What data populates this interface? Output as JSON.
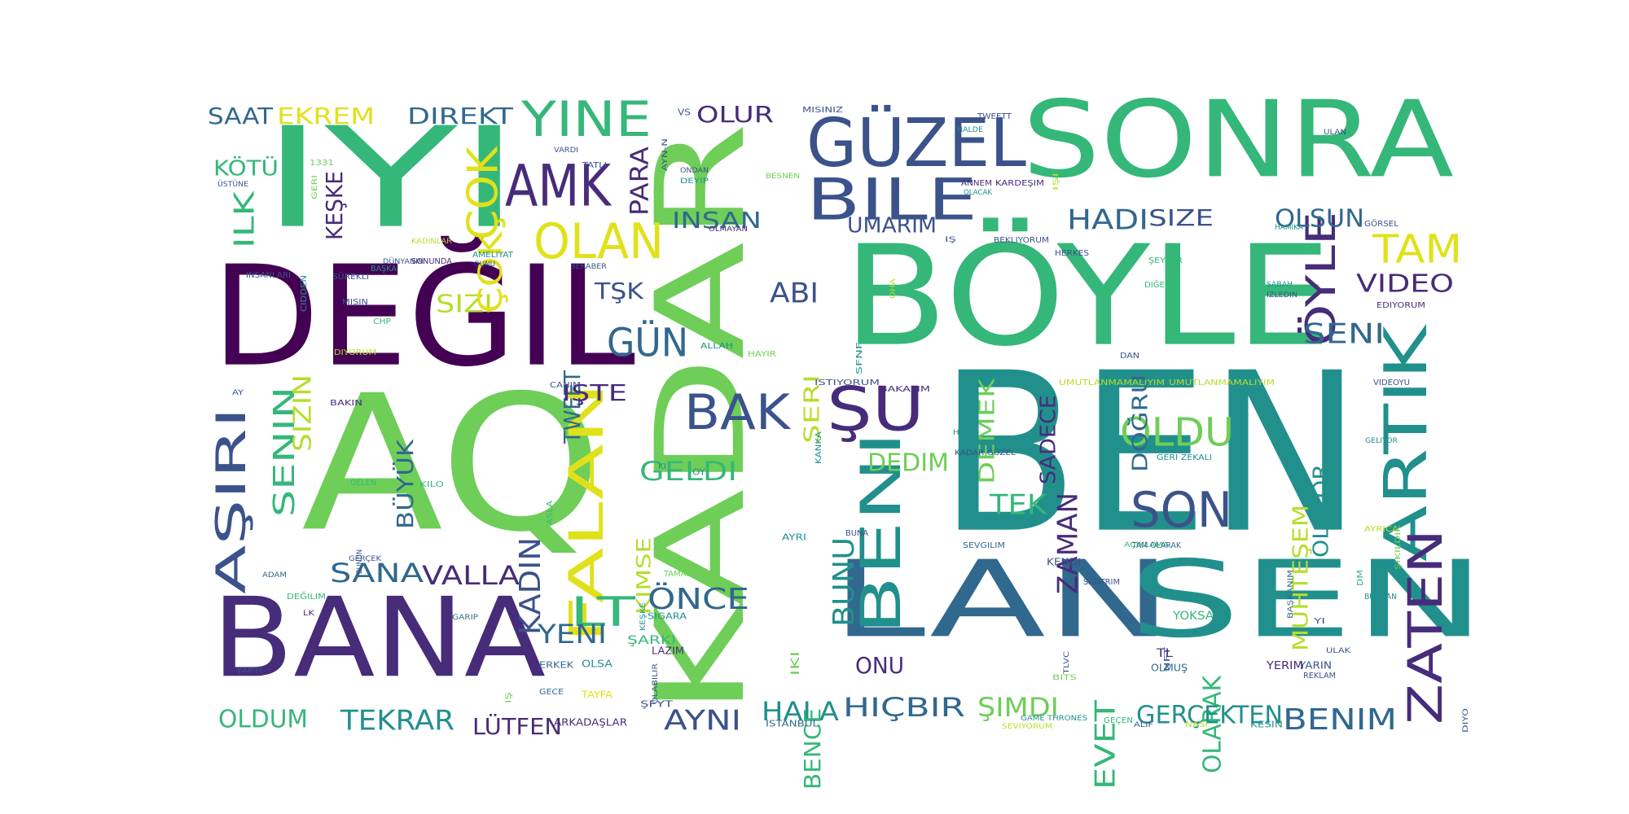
{
  "palette": {
    "dark_purple": "#440154",
    "indigo": "#472c7a",
    "blue": "#3b528b",
    "slate": "#31688e",
    "teal": "#21908d",
    "green": "#35b779",
    "lime": "#6ece58",
    "yellowgreen": "#b5de2b",
    "yellow": "#e0e11a"
  },
  "words": [
    {
      "text": "BEN",
      "color": "teal"
    },
    {
      "text": "BÖYLE",
      "color": "green"
    },
    {
      "text": "SONRA",
      "color": "green"
    },
    {
      "text": "AQ",
      "color": "lime"
    },
    {
      "text": "DEĞIL",
      "color": "dark_purple"
    },
    {
      "text": "IYI",
      "color": "green"
    },
    {
      "text": "KADAR",
      "color": "lime"
    },
    {
      "text": "BANA",
      "color": "indigo"
    },
    {
      "text": "LAN",
      "color": "slate"
    },
    {
      "text": "SEN",
      "color": "teal"
    },
    {
      "text": "ARTIK",
      "color": "teal"
    },
    {
      "text": "ZATEN",
      "color": "indigo"
    },
    {
      "text": "FALAN",
      "color": "yellow"
    },
    {
      "text": "GÜZEL",
      "color": "blue"
    },
    {
      "text": "BILE",
      "color": "blue"
    },
    {
      "text": "AMK",
      "color": "indigo"
    },
    {
      "text": "ÇOK",
      "color": "yellow"
    },
    {
      "text": "YINE",
      "color": "green"
    },
    {
      "text": "OLAN",
      "color": "yellow"
    },
    {
      "text": "AŞIRI",
      "color": "blue"
    },
    {
      "text": "ŞU",
      "color": "indigo"
    },
    {
      "text": "BENI",
      "color": "teal"
    },
    {
      "text": "BAK",
      "color": "blue"
    },
    {
      "text": "ÖYLE",
      "color": "indigo"
    },
    {
      "text": "SON",
      "color": "blue"
    },
    {
      "text": "OLDU",
      "color": "lime"
    },
    {
      "text": "TAM",
      "color": "yellow"
    },
    {
      "text": "LT",
      "color": "green"
    },
    {
      "text": "GÜN",
      "color": "slate"
    },
    {
      "text": "EKREM",
      "color": "yellow"
    },
    {
      "text": "SAAT",
      "color": "slate"
    },
    {
      "text": "DIREKT",
      "color": "slate"
    },
    {
      "text": "OLUR",
      "color": "indigo"
    },
    {
      "text": "PARA",
      "color": "indigo"
    },
    {
      "text": "KÖTÜ",
      "color": "green"
    },
    {
      "text": "KEŞKE",
      "color": "indigo"
    },
    {
      "text": "ILK",
      "color": "green"
    },
    {
      "text": "INSAN",
      "color": "slate"
    },
    {
      "text": "UMARIM",
      "color": "blue"
    },
    {
      "text": "HADI",
      "color": "slate"
    },
    {
      "text": "SIZE",
      "color": "blue"
    },
    {
      "text": "OLSUN",
      "color": "slate"
    },
    {
      "text": "SENIN",
      "color": "green"
    },
    {
      "text": "SIZIN",
      "color": "yellowgreen"
    },
    {
      "text": "BÜYÜK",
      "color": "slate"
    },
    {
      "text": "SIZI",
      "color": "yellowgreen"
    },
    {
      "text": "TŞK",
      "color": "blue"
    },
    {
      "text": "TWEET",
      "color": "slate"
    },
    {
      "text": "ABI",
      "color": "blue"
    },
    {
      "text": "SERI",
      "color": "yellowgreen"
    },
    {
      "text": "IŞTE",
      "color": "indigo"
    },
    {
      "text": "KADIN",
      "color": "blue"
    },
    {
      "text": "GELDI",
      "color": "green"
    },
    {
      "text": "KIMSE",
      "color": "yellowgreen"
    },
    {
      "text": "ÖNCE",
      "color": "slate"
    },
    {
      "text": "SANA",
      "color": "slate"
    },
    {
      "text": "VALLA",
      "color": "indigo"
    },
    {
      "text": "YENI",
      "color": "slate"
    },
    {
      "text": "DEMEK",
      "color": "lime"
    },
    {
      "text": "SADECE",
      "color": "indigo"
    },
    {
      "text": "DOĞRU",
      "color": "slate"
    },
    {
      "text": "SENI",
      "color": "slate"
    },
    {
      "text": "VIDEO",
      "color": "indigo"
    },
    {
      "text": "MUHTEŞEM",
      "color": "yellowgreen"
    },
    {
      "text": "OLUYOR",
      "color": "teal"
    },
    {
      "text": "ZAMAN",
      "color": "indigo"
    },
    {
      "text": "DEDIM",
      "color": "lime"
    },
    {
      "text": "TEK",
      "color": "green"
    },
    {
      "text": "BUNU",
      "color": "teal"
    },
    {
      "text": "EVET",
      "color": "green"
    },
    {
      "text": "OLARAK",
      "color": "green"
    },
    {
      "text": "GERÇEKTEN",
      "color": "teal"
    },
    {
      "text": "BENIM",
      "color": "slate"
    },
    {
      "text": "ŞIMDI",
      "color": "lime"
    },
    {
      "text": "HIÇBIR",
      "color": "slate"
    },
    {
      "text": "HALA",
      "color": "teal"
    },
    {
      "text": "BENCE",
      "color": "green"
    },
    {
      "text": "ONU",
      "color": "indigo"
    },
    {
      "text": "AYNI",
      "color": "blue"
    },
    {
      "text": "LÜTFEN",
      "color": "indigo"
    },
    {
      "text": "TEKRAR",
      "color": "teal"
    },
    {
      "text": "OLDUM",
      "color": "green"
    },
    {
      "text": "ÇOK",
      "color": "yellow"
    },
    {
      "text": "ALLAH",
      "color": "teal"
    },
    {
      "text": "OY",
      "color": "teal"
    },
    {
      "text": "KI",
      "color": "teal"
    },
    {
      "text": "AYRI",
      "color": "teal"
    },
    {
      "text": "BUNA",
      "color": "blue"
    },
    {
      "text": "TAMAM",
      "color": "lime"
    },
    {
      "text": "ŞARKI",
      "color": "green"
    },
    {
      "text": "LAZIM",
      "color": "indigo"
    },
    {
      "text": "OLSA",
      "color": "teal"
    },
    {
      "text": "TAYFA",
      "color": "yellow"
    },
    {
      "text": "ARKADAŞLAR",
      "color": "indigo"
    },
    {
      "text": "ŞFYT",
      "color": "blue"
    },
    {
      "text": "ERKEK",
      "color": "slate"
    },
    {
      "text": "GECE",
      "color": "slate"
    },
    {
      "text": "SIGARA",
      "color": "teal"
    },
    {
      "text": "ISTANBUL",
      "color": "slate"
    },
    {
      "text": "IKI",
      "color": "lime"
    },
    {
      "text": "OLABILIR",
      "color": "blue"
    },
    {
      "text": "KEŞKE",
      "color": "teal"
    },
    {
      "text": "ASLA",
      "color": "green"
    },
    {
      "text": "ŞAKA",
      "color": "lime"
    },
    {
      "text": "BAKIN",
      "color": "indigo"
    },
    {
      "text": "GELEN",
      "color": "green"
    },
    {
      "text": "KILO",
      "color": "green"
    },
    {
      "text": "CANIM",
      "color": "blue"
    },
    {
      "text": "HAYIR",
      "color": "lime"
    },
    {
      "text": "ISTIYORUM",
      "color": "blue"
    },
    {
      "text": "BAKALIM",
      "color": "indigo"
    },
    {
      "text": "KANKA",
      "color": "teal"
    },
    {
      "text": "SFNF",
      "color": "teal"
    },
    {
      "text": "OHA",
      "color": "yellowgreen"
    },
    {
      "text": "ANNEM",
      "color": "indigo"
    },
    {
      "text": "KARDEŞIM",
      "color": "indigo"
    },
    {
      "text": "OLACAK",
      "color": "teal"
    },
    {
      "text": "BEKLIYORUM",
      "color": "blue"
    },
    {
      "text": "HERKES",
      "color": "blue"
    },
    {
      "text": "ŞEYLER",
      "color": "green"
    },
    {
      "text": "DIĞER",
      "color": "green"
    },
    {
      "text": "SABAH",
      "color": "teal"
    },
    {
      "text": "IZLEDIN",
      "color": "blue"
    },
    {
      "text": "EDIYORUM",
      "color": "indigo"
    },
    {
      "text": "GÖRSEL",
      "color": "blue"
    },
    {
      "text": "HAMIKA",
      "color": "teal"
    },
    {
      "text": "VIDEOYU",
      "color": "blue"
    },
    {
      "text": "DAN",
      "color": "blue"
    },
    {
      "text": "UMUTLANMAMALIYIM",
      "color": "yellowgreen"
    },
    {
      "text": "UMUTLANMAMALIYIM",
      "color": "yellowgreen"
    },
    {
      "text": "HARIÇ",
      "color": "teal"
    },
    {
      "text": "KADAR GÜZEL",
      "color": "blue"
    },
    {
      "text": "GERI ZEKALI",
      "color": "teal"
    },
    {
      "text": "GELIYOR",
      "color": "teal"
    },
    {
      "text": "AÇIKLAMA",
      "color": "green"
    },
    {
      "text": "TAM OLARAK",
      "color": "slate"
    },
    {
      "text": "SEVGILIM",
      "color": "slate"
    },
    {
      "text": "KENDI",
      "color": "blue"
    },
    {
      "text": "SANTRIM",
      "color": "blue"
    },
    {
      "text": "NFT",
      "color": "blue"
    },
    {
      "text": "BAŞKANIM",
      "color": "slate"
    },
    {
      "text": "BUNDAN",
      "color": "teal"
    },
    {
      "text": "AYRICA",
      "color": "yellowgreen"
    },
    {
      "text": "DM",
      "color": "green"
    },
    {
      "text": "ŞIKILDIK",
      "color": "lime"
    },
    {
      "text": "YOKSA",
      "color": "green"
    },
    {
      "text": "TL",
      "color": "indigo"
    },
    {
      "text": "OLMUŞ",
      "color": "slate"
    },
    {
      "text": "YI",
      "color": "blue"
    },
    {
      "text": "ULAK",
      "color": "blue"
    },
    {
      "text": "YERIM",
      "color": "indigo"
    },
    {
      "text": "YARIN",
      "color": "blue"
    },
    {
      "text": "REKLAM",
      "color": "blue"
    },
    {
      "text": "KESIN",
      "color": "teal"
    },
    {
      "text": "NASI",
      "color": "yellowgreen"
    },
    {
      "text": "GEÇEN",
      "color": "green"
    },
    {
      "text": "ALIF",
      "color": "blue"
    },
    {
      "text": "TLVC",
      "color": "blue"
    },
    {
      "text": "BITS",
      "color": "lime"
    },
    {
      "text": "GAME THRONES",
      "color": "teal"
    },
    {
      "text": "SEVIYORUM",
      "color": "yellowgreen"
    },
    {
      "text": "DIYO",
      "color": "blue"
    },
    {
      "text": "ULAN",
      "color": "blue"
    },
    {
      "text": "VS",
      "color": "blue"
    },
    {
      "text": "AYN-N",
      "color": "blue"
    },
    {
      "text": "VARDI",
      "color": "blue"
    },
    {
      "text": "TATLI",
      "color": "blue"
    },
    {
      "text": "ONDAN",
      "color": "blue"
    },
    {
      "text": "DEYIP",
      "color": "teal"
    },
    {
      "text": "BESNEN",
      "color": "lime"
    },
    {
      "text": "MISINIZ",
      "color": "blue"
    },
    {
      "text": "HALDE",
      "color": "teal"
    },
    {
      "text": "TWEETT",
      "color": "blue"
    },
    {
      "text": "IŞI",
      "color": "yellowgreen"
    },
    {
      "text": "OLMAYAN",
      "color": "indigo"
    },
    {
      "text": "IŞ",
      "color": "blue"
    },
    {
      "text": "1331",
      "color": "lime"
    },
    {
      "text": "GERI",
      "color": "lime"
    },
    {
      "text": "ÜSTÜNE",
      "color": "blue"
    },
    {
      "text": "CIDDEN",
      "color": "teal"
    },
    {
      "text": "INSANLARI",
      "color": "blue"
    },
    {
      "text": "SÜREKLI",
      "color": "blue"
    },
    {
      "text": "MISIN",
      "color": "blue"
    },
    {
      "text": "CHP",
      "color": "green"
    },
    {
      "text": "BAŞKA",
      "color": "teal"
    },
    {
      "text": "DIYORUM",
      "color": "yellowgreen"
    },
    {
      "text": "SONUNDA",
      "color": "indigo"
    },
    {
      "text": "KADINLAR",
      "color": "yellowgreen"
    },
    {
      "text": "DÜNYANIN",
      "color": "blue"
    },
    {
      "text": "AMELIYAT",
      "color": "teal"
    },
    {
      "text": "GUNU",
      "color": "blue"
    },
    {
      "text": "BERABER",
      "color": "blue"
    },
    {
      "text": "AY",
      "color": "blue"
    },
    {
      "text": "BUNUN",
      "color": "blue"
    },
    {
      "text": "GERÇEK",
      "color": "blue"
    },
    {
      "text": "ADAM",
      "color": "slate"
    },
    {
      "text": "DEĞILIM",
      "color": "green"
    },
    {
      "text": "LK",
      "color": "indigo"
    },
    {
      "text": "GARIP",
      "color": "slate"
    },
    {
      "text": "YAPTI",
      "color": "blue"
    },
    {
      "text": "IŞ",
      "color": "lime"
    }
  ]
}
